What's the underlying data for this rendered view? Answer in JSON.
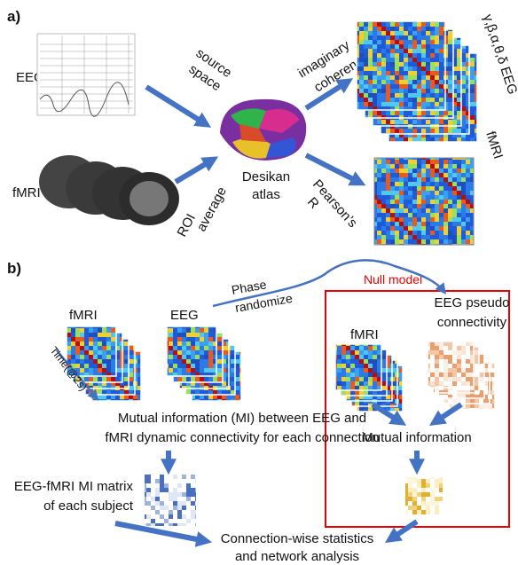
{
  "panel_a": {
    "label": "a)",
    "eeg_label": "EEG",
    "fmri_label": "fMRI",
    "source_space": [
      "source",
      "space"
    ],
    "roi_average": [
      "ROI",
      "average"
    ],
    "atlas": [
      "Desikan",
      "atlas"
    ],
    "imaginary_coherence": [
      "imaginary",
      "coherence"
    ],
    "pearson": [
      "Pearson’s",
      "R"
    ],
    "eeg_bands": "γ,β,α,θ,δ EEG",
    "fmri_matrix": "fMRI"
  },
  "panel_b": {
    "label": "b)",
    "fmri_label": "fMRI",
    "eeg_label": "EEG",
    "phase_randomize": [
      "Phase",
      "randomize"
    ],
    "null_model": "Null model",
    "null_fmri_label": "fMRI",
    "pseudo": [
      "EEG pseudo",
      "connectivity"
    ],
    "time": "Time(@2s)",
    "mi_text": [
      "Mutual information (MI) between EEG and",
      "fMRI dynamic connectivity for each connection"
    ],
    "mi_matrix": [
      "EEG-fMRI MI matrix",
      "of each subject"
    ],
    "null_mi": "Mutual information",
    "stats": [
      "Connection-wise statistics",
      "and network analysis"
    ]
  }
}
